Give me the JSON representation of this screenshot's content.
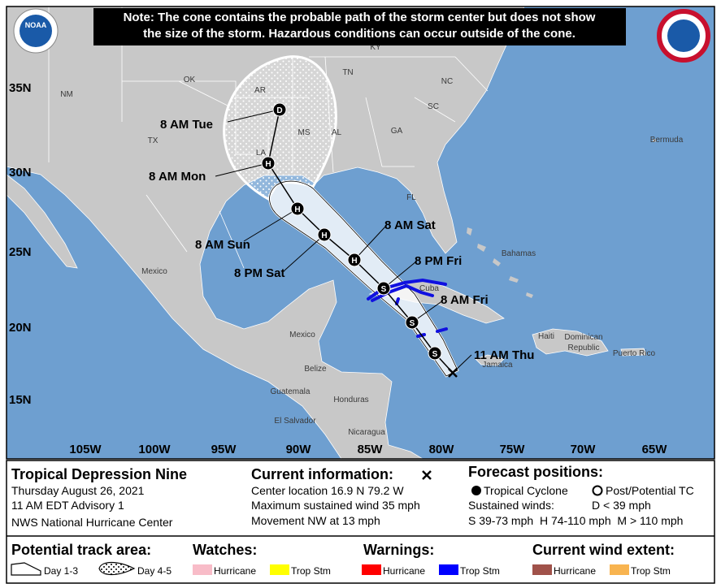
{
  "note": [
    "Note: The cone contains the probable path of the storm center but does not show",
    "the size of the storm. Hazardous conditions can occur outside of the cone."
  ],
  "logo": "NOAA",
  "lat_labels": [
    "35N",
    "30N",
    "25N",
    "20N",
    "15N"
  ],
  "lon_labels": [
    "105W",
    "100W",
    "95W",
    "90W",
    "85W",
    "80W",
    "75W",
    "70W",
    "65W"
  ],
  "place_labels": [
    "KY",
    "OK",
    "AR",
    "TN",
    "NC",
    "NM",
    "SC",
    "MS",
    "AL",
    "GA",
    "TX",
    "LA",
    "FL",
    "Bermuda",
    "Bahamas",
    "Mexico",
    "Cuba",
    "Mexico",
    "Belize",
    "Haiti",
    "Dominican",
    "Republic",
    "Puerto Rico",
    "Jamaica",
    "Guatemala",
    "Honduras",
    "El Salvador",
    "Nicaragua"
  ],
  "forecast_points": [
    {
      "time": "11 AM Thu"
    },
    {
      "letter": "S"
    },
    {
      "time": "8 AM Fri",
      "letter": "S"
    },
    {
      "time": "8 PM Fri",
      "letter": "S"
    },
    {
      "time": "8 AM Sat",
      "letter": "H"
    },
    {
      "time": "8 PM Sat",
      "letter": "H"
    },
    {
      "time": "8 AM Sun",
      "letter": "H"
    },
    {
      "time": "8 AM Mon",
      "letter": "H"
    },
    {
      "time": "8 AM Tue",
      "letter": "D"
    }
  ],
  "legend": {
    "storm_name": "Tropical Depression Nine",
    "date": "Thursday August 26, 2021",
    "advisory": "11 AM EDT Advisory 1",
    "center": "NWS National Hurricane Center",
    "current_title": "Current information:",
    "location": "Center location 16.9 N 79.2 W",
    "wind": "Maximum sustained wind 35 mph",
    "movement": "Movement NW at 13 mph",
    "forecast_title": "Forecast positions:",
    "tropical": "Tropical Cyclone",
    "post": "Post/Potential TC",
    "sustained": "Sustained winds:",
    "d_range": "D < 39 mph",
    "ranges": "S 39-73 mph  H 74-110 mph  M > 110 mph",
    "track_title": "Potential track area:",
    "day13": "Day 1-3",
    "day45": "Day 4-5",
    "groups": [
      {
        "title": "Watches:",
        "items": [
          {
            "name": "Hurricane",
            "color": "#f8bcc8"
          },
          {
            "name": "Trop Stm",
            "color": "#ffff00"
          }
        ]
      },
      {
        "title": "Warnings:",
        "items": [
          {
            "name": "Hurricane",
            "color": "#ff0000"
          },
          {
            "name": "Trop Stm",
            "color": "#0000ff"
          }
        ]
      },
      {
        "title": "Current wind extent:",
        "items": [
          {
            "name": "Hurricane",
            "color": "#a0524a"
          },
          {
            "name": "Trop Stm",
            "color": "#f8b450"
          }
        ]
      }
    ]
  }
}
